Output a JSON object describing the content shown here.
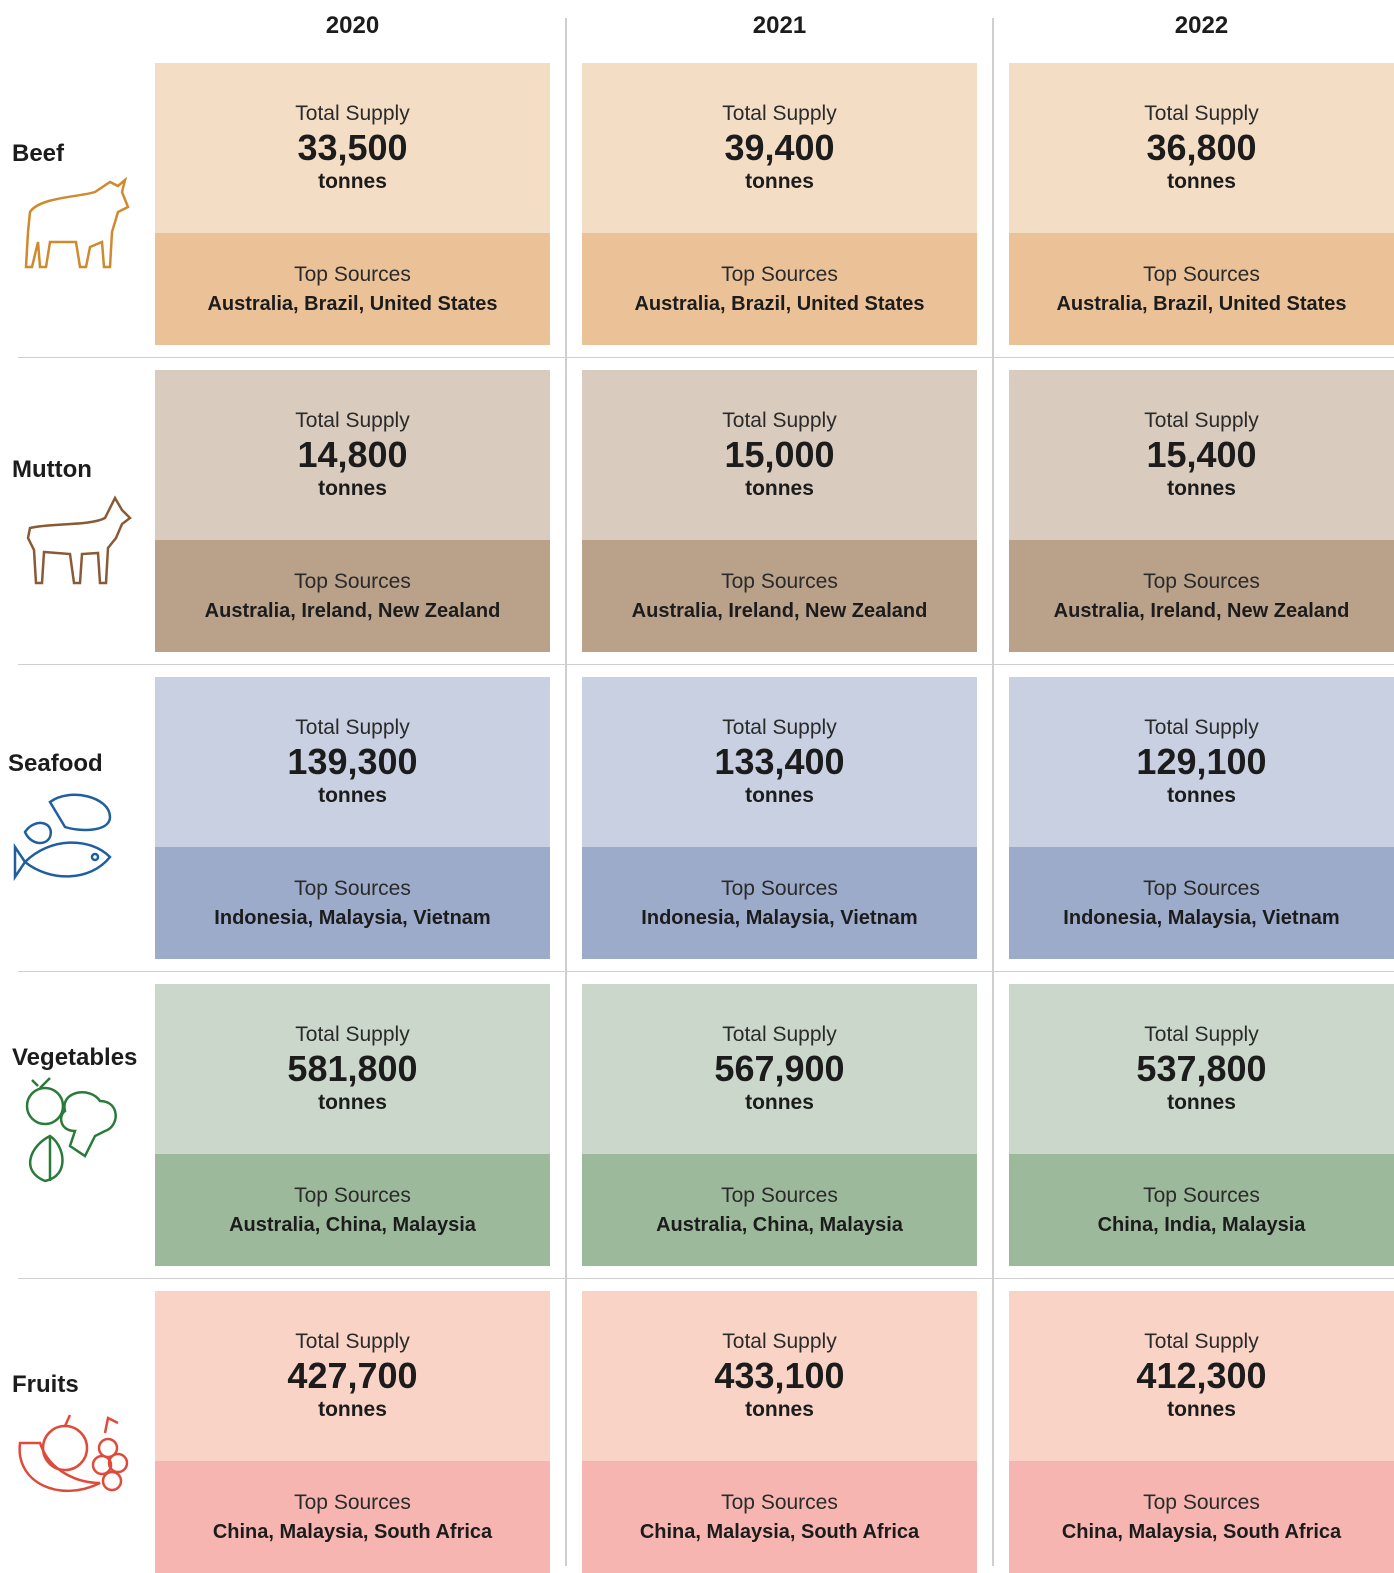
{
  "labels": {
    "supply": "Total Supply",
    "unit": "tonnes",
    "sources": "Top Sources"
  },
  "years": [
    "2020",
    "2021",
    "2022"
  ],
  "rows": [
    {
      "category": "Beef",
      "cells": [
        {
          "supply": "33,500",
          "sources": "Australia, Brazil, United States"
        },
        {
          "supply": "39,400",
          "sources": "Australia, Brazil, United States"
        },
        {
          "supply": "36,800",
          "sources": "Australia, Brazil, United States"
        }
      ]
    },
    {
      "category": "Mutton",
      "cells": [
        {
          "supply": "14,800",
          "sources": "Australia, Ireland, New Zealand"
        },
        {
          "supply": "15,000",
          "sources": "Australia, Ireland, New Zealand"
        },
        {
          "supply": "15,400",
          "sources": "Australia, Ireland, New Zealand"
        }
      ]
    },
    {
      "category": "Seafood",
      "cells": [
        {
          "supply": "139,300",
          "sources": "Indonesia, Malaysia, Vietnam"
        },
        {
          "supply": "133,400",
          "sources": "Indonesia, Malaysia, Vietnam"
        },
        {
          "supply": "129,100",
          "sources": "Indonesia, Malaysia, Vietnam"
        }
      ]
    },
    {
      "category": "Vegetables",
      "cells": [
        {
          "supply": "581,800",
          "sources": "Australia, China, Malaysia"
        },
        {
          "supply": "567,900",
          "sources": "Australia, China, Malaysia"
        },
        {
          "supply": "537,800",
          "sources": "China, India, Malaysia"
        }
      ]
    },
    {
      "category": "Fruits",
      "cells": [
        {
          "supply": "427,700",
          "sources": "China, Malaysia, South Africa"
        },
        {
          "supply": "433,100",
          "sources": "China, Malaysia, South Africa"
        },
        {
          "supply": "412,300",
          "sources": "China, Malaysia, South Africa"
        }
      ]
    }
  ]
}
